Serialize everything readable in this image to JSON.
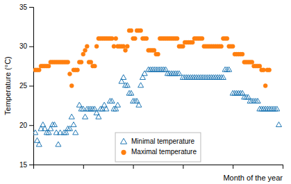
{
  "chart_data": {
    "type": "scatter",
    "xlabel": "Month of the year",
    "ylabel": "Temperature (°C)",
    "xlim": [
      0,
      130
    ],
    "xticks": [
      0,
      26,
      52,
      78,
      104,
      130
    ],
    "ylim": [
      15,
      35
    ],
    "yticks": [
      15,
      20,
      25,
      30,
      35
    ],
    "tick_labels": "y",
    "legend": "bottom",
    "series": [
      {
        "name": "Minimal temperature",
        "marker": "triangle-open",
        "x": [
          1,
          2,
          3,
          4,
          5,
          6,
          7,
          8,
          9,
          10,
          11,
          12,
          13,
          14,
          16,
          17,
          18,
          19,
          20,
          21,
          22,
          24,
          25,
          26,
          27,
          28,
          29,
          30,
          31,
          32,
          33,
          34,
          35,
          36,
          37,
          38,
          40,
          41,
          42,
          43,
          44,
          46,
          47,
          48,
          49,
          50,
          51,
          52,
          53,
          54,
          55,
          56,
          57,
          58,
          60,
          61,
          62,
          63,
          64,
          65,
          66,
          67,
          68,
          69,
          70,
          71,
          72,
          73,
          74,
          75,
          76,
          78,
          79,
          80,
          81,
          82,
          83,
          84,
          85,
          86,
          87,
          88,
          89,
          90,
          91,
          92,
          93,
          94,
          95,
          96,
          97,
          98,
          99,
          100,
          101,
          102,
          104,
          105,
          106,
          107,
          108,
          109,
          110,
          111,
          112,
          113,
          114,
          115,
          116,
          117,
          118,
          119,
          120,
          121,
          122,
          123,
          124,
          125,
          126,
          127,
          128
        ],
        "values": [
          19.0,
          18.0,
          17.5,
          19.5,
          20.0,
          19.5,
          19.0,
          19.0,
          19.5,
          20.0,
          20.0,
          19.0,
          17.5,
          19.0,
          19.0,
          19.0,
          19.5,
          19.5,
          21.0,
          20.0,
          19.0,
          22.5,
          22.0,
          22.0,
          21.0,
          22.0,
          22.0,
          22.0,
          22.0,
          22.0,
          21.5,
          21.0,
          22.0,
          22.0,
          22.5,
          22.0,
          23.0,
          23.0,
          22.0,
          22.0,
          22.5,
          25.5,
          26.0,
          25.0,
          25.0,
          24.0,
          24.0,
          23.0,
          23.0,
          23.0,
          22.5,
          25.0,
          26.0,
          26.5,
          27.0,
          27.0,
          27.0,
          27.0,
          27.0,
          27.0,
          27.0,
          27.0,
          27.0,
          27.0,
          26.5,
          26.5,
          26.5,
          26.5,
          26.5,
          26.5,
          26.5,
          26.0,
          26.0,
          26.0,
          26.0,
          26.0,
          26.0,
          26.0,
          26.0,
          26.0,
          26.0,
          26.0,
          26.0,
          26.0,
          26.0,
          26.0,
          26.0,
          26.0,
          26.0,
          26.0,
          26.0,
          26.0,
          26.0,
          27.0,
          27.0,
          27.0,
          24.0,
          24.0,
          24.0,
          24.0,
          24.0,
          24.0,
          23.5,
          23.5,
          23.5,
          23.0,
          23.0,
          23.0,
          23.0,
          23.0,
          22.0,
          22.0,
          22.0,
          22.0,
          22.0,
          22.0,
          22.0,
          22.0,
          22.0,
          22.0,
          20.0
        ]
      },
      {
        "name": "Maximal temperature",
        "marker": "circle",
        "x": [
          1,
          2,
          3,
          4,
          5,
          6,
          7,
          8,
          9,
          10,
          11,
          12,
          13,
          14,
          15,
          16,
          17,
          18,
          19,
          20,
          21,
          22,
          23,
          24,
          25,
          26,
          27,
          28,
          29,
          30,
          31,
          32,
          33,
          34,
          35,
          36,
          37,
          38,
          39,
          40,
          41,
          42,
          43,
          44,
          45,
          46,
          47,
          48,
          49,
          50,
          51,
          52,
          53,
          54,
          55,
          56,
          57,
          58,
          59,
          60,
          61,
          62,
          63,
          64,
          65,
          66,
          67,
          68,
          69,
          70,
          71,
          72,
          73,
          74,
          75,
          76,
          77,
          78,
          79,
          80,
          81,
          82,
          83,
          84,
          85,
          86,
          87,
          88,
          89,
          90,
          91,
          92,
          93,
          94,
          95,
          96,
          97,
          98,
          99,
          100,
          101,
          102,
          103,
          104,
          105,
          106,
          107,
          108,
          109,
          110,
          111,
          112,
          113,
          114,
          115,
          116,
          117,
          118,
          119,
          120,
          121,
          122,
          123
        ],
        "values": [
          27.0,
          27.0,
          27.0,
          27.5,
          27.5,
          27.5,
          27.5,
          27.5,
          28.0,
          28.0,
          28.0,
          28.0,
          28.0,
          28.0,
          28.0,
          28.0,
          28.0,
          28.0,
          26.5,
          25.0,
          27.0,
          27.0,
          27.0,
          28.0,
          28.0,
          29.0,
          29.5,
          30.0,
          28.0,
          28.0,
          27.5,
          27.5,
          30.0,
          31.0,
          31.0,
          31.0,
          31.0,
          31.0,
          31.0,
          31.0,
          31.0,
          30.0,
          31.0,
          30.0,
          30.0,
          30.0,
          30.0,
          29.5,
          30.0,
          32.0,
          32.0,
          31.0,
          31.0,
          32.0,
          32.0,
          32.0,
          31.0,
          31.0,
          31.0,
          29.5,
          29.5,
          29.5,
          29.5,
          29.0,
          29.0,
          31.0,
          31.0,
          31.0,
          31.0,
          31.0,
          31.0,
          31.0,
          31.0,
          31.0,
          31.0,
          30.0,
          30.0,
          30.0,
          30.5,
          30.5,
          30.5,
          30.5,
          30.5,
          31.0,
          31.0,
          31.0,
          31.0,
          31.0,
          30.0,
          30.0,
          30.0,
          30.0,
          30.0,
          30.0,
          30.0,
          30.0,
          30.0,
          30.0,
          31.0,
          31.0,
          31.0,
          30.0,
          30.0,
          30.0,
          29.0,
          29.0,
          29.0,
          29.0,
          29.0,
          28.0,
          28.0,
          28.0,
          28.0,
          28.0,
          27.5,
          27.5,
          27.5,
          27.5,
          27.0,
          27.0,
          25.0,
          27.0,
          27.0
        ]
      }
    ]
  }
}
